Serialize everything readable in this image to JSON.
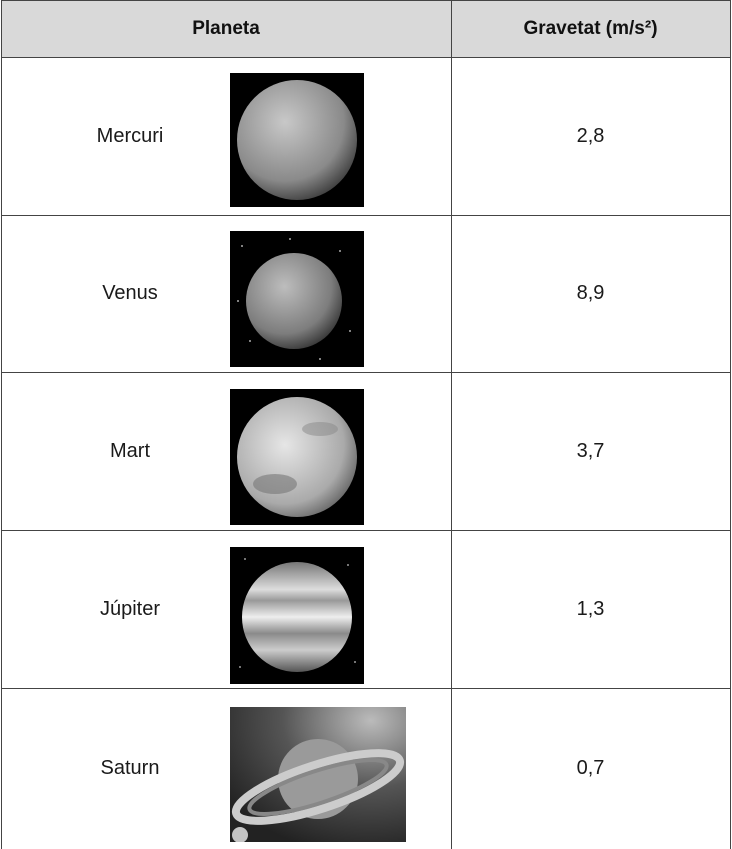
{
  "table": {
    "header": [
      "Planeta",
      "Gravetat (m/s²)"
    ],
    "rows": [
      [
        "Mercuri",
        "2,8"
      ],
      [
        "Venus",
        "8,9"
      ],
      [
        "Mart",
        "3,7"
      ],
      [
        "Júpiter",
        "1,3"
      ],
      [
        "Saturn",
        "0,7"
      ]
    ]
  }
}
